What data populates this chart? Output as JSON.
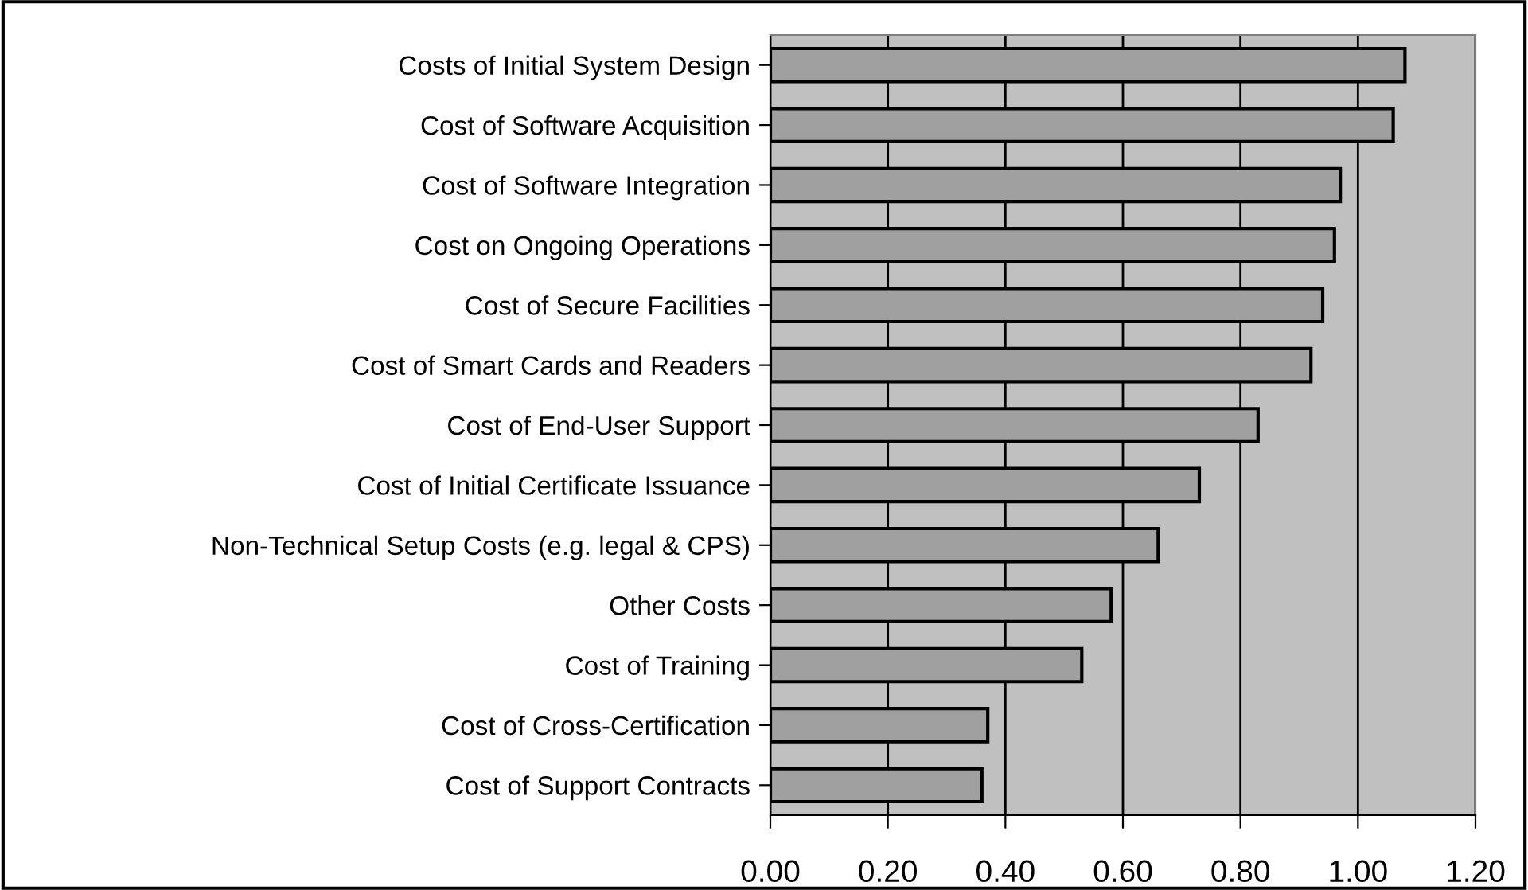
{
  "chart_data": {
    "type": "bar",
    "orientation": "horizontal",
    "categories": [
      "Costs of Initial System Design",
      "Cost of Software Acquisition",
      "Cost of Software Integration",
      "Cost on Ongoing Operations",
      "Cost of Secure Facilities",
      "Cost of Smart Cards and Readers",
      "Cost of End-User Support",
      "Cost of Initial Certificate Issuance",
      "Non-Technical Setup Costs (e.g. legal & CPS)",
      "Other Costs",
      "Cost of Training",
      "Cost of Cross-Certification",
      "Cost of Support Contracts"
    ],
    "values": [
      1.08,
      1.06,
      0.97,
      0.96,
      0.94,
      0.92,
      0.83,
      0.73,
      0.66,
      0.58,
      0.53,
      0.37,
      0.36
    ],
    "color": "#a0a0a0",
    "xlim": [
      0,
      1.2
    ],
    "xticks": [
      {
        "value": 0,
        "label": "0.00"
      },
      {
        "value": 0.2,
        "label": "0.20"
      },
      {
        "value": 0.4,
        "label": "0.40"
      },
      {
        "value": 0.6,
        "label": "0.60"
      },
      {
        "value": 0.8,
        "label": "0.80"
      },
      {
        "value": 1.0,
        "label": "1.00"
      },
      {
        "value": 1.2,
        "label": "1.20"
      }
    ],
    "grid": "x"
  }
}
